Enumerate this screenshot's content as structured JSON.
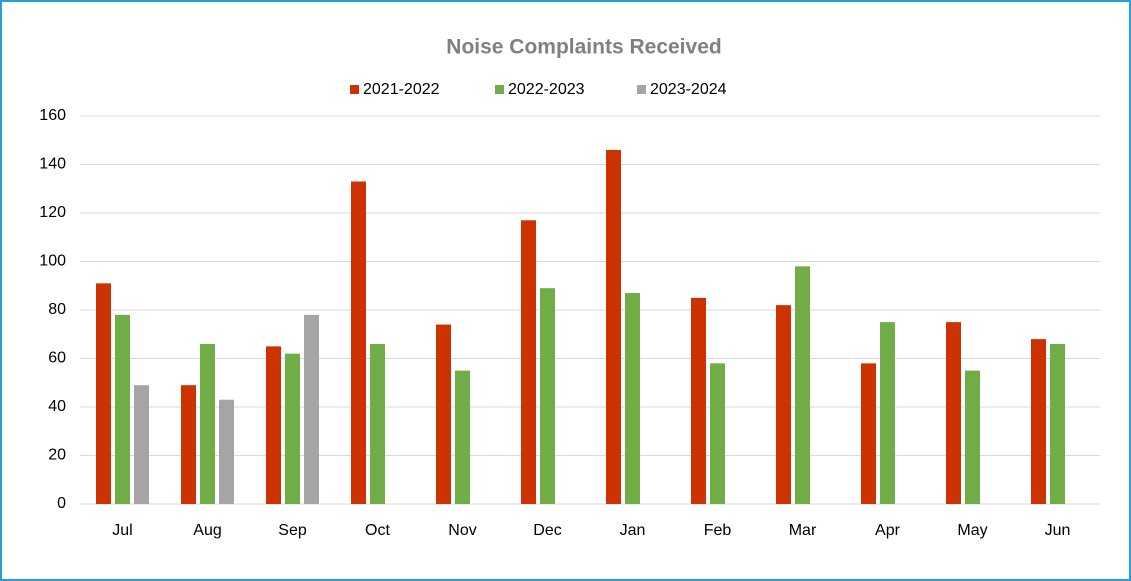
{
  "chart_data": {
    "type": "bar",
    "title": "Noise Complaints Received",
    "categories": [
      "Jul",
      "Aug",
      "Sep",
      "Oct",
      "Nov",
      "Dec",
      "Jan",
      "Feb",
      "Mar",
      "Apr",
      "May",
      "Jun"
    ],
    "series": [
      {
        "name": "2021-2022",
        "color": "#cc3300",
        "values": [
          91,
          49,
          65,
          133,
          74,
          117,
          146,
          85,
          82,
          58,
          75,
          68
        ]
      },
      {
        "name": "2022-2023",
        "color": "#70ad47",
        "values": [
          78,
          66,
          62,
          66,
          55,
          89,
          87,
          58,
          98,
          75,
          55,
          66
        ]
      },
      {
        "name": "2023-2024",
        "color": "#a5a5a5",
        "values": [
          49,
          43,
          78,
          null,
          null,
          null,
          null,
          null,
          null,
          null,
          null,
          null
        ]
      }
    ],
    "ylim": [
      0,
      160
    ],
    "yticks": [
      0,
      20,
      40,
      60,
      80,
      100,
      120,
      140,
      160
    ],
    "grid": true,
    "legend": "top"
  }
}
